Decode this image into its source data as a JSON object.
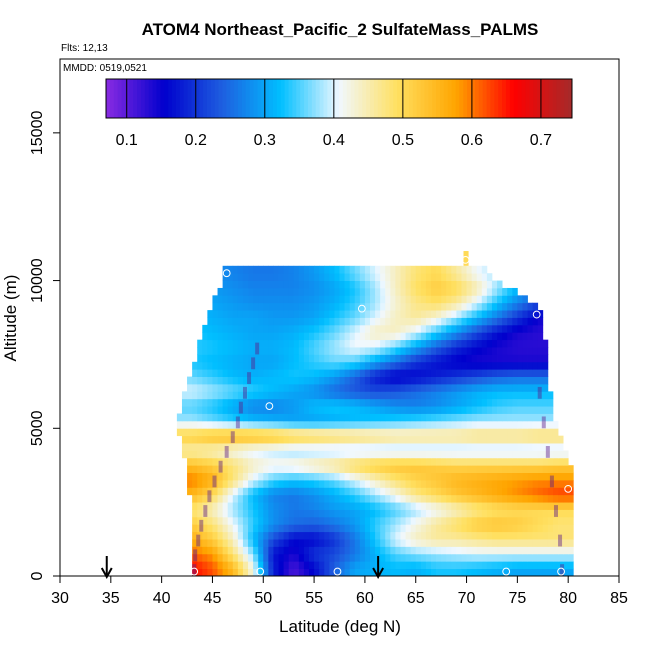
{
  "chart_data": {
    "type": "heatmap",
    "title": "ATOM4 Northeast_Pacific_2 SulfateMass_PALMS",
    "flights_label": "Flts: 12,13",
    "dates_label": "MMDD: 0519,0521",
    "xlabel": "Latitude (deg N)",
    "ylabel": "Altitude (m)",
    "xlim": [
      30,
      85
    ],
    "ylim": [
      0,
      17500
    ],
    "xticks": [
      "30",
      "35",
      "40",
      "45",
      "50",
      "55",
      "60",
      "65",
      "70",
      "75",
      "80",
      "85"
    ],
    "yticks": [
      "0",
      "5000",
      "10000",
      "15000"
    ],
    "colorbar": {
      "range": [
        0.07,
        0.745
      ],
      "ticks": [
        "0.1",
        "0.2",
        "0.3",
        "0.4",
        "0.5",
        "0.6",
        "0.7"
      ],
      "tick_values": [
        0.1,
        0.2,
        0.3,
        0.4,
        0.5,
        0.6,
        0.7
      ],
      "colors": [
        "#8a2be2",
        "#0000cd",
        "#1e5fe0",
        "#00bfff",
        "#f0f8ff",
        "#ffe060",
        "#ffa500",
        "#ff0000",
        "#a52a2a"
      ]
    },
    "latitude_bins": [
      43,
      45,
      47,
      49,
      51,
      53,
      55,
      57,
      59,
      61,
      63,
      65,
      67,
      69,
      71,
      73,
      75,
      77,
      79
    ],
    "altitude_bins": [
      250,
      750,
      1250,
      1750,
      2250,
      2750,
      3250,
      3750,
      4250,
      4750,
      5250,
      5750,
      6250,
      6750,
      7250,
      7750,
      8250,
      8750,
      9250,
      9750,
      10250
    ],
    "values": [
      [
        0.66,
        0.62,
        0.55,
        0.42,
        0.18,
        0.11,
        0.16,
        0.24,
        0.3,
        0.31,
        0.32,
        0.31,
        0.33,
        0.33,
        0.32,
        0.31,
        0.3,
        0.3,
        0.3
      ],
      [
        0.61,
        0.58,
        0.48,
        0.37,
        0.17,
        0.14,
        0.2,
        0.22,
        0.26,
        0.31,
        0.35,
        0.37,
        0.38,
        0.39,
        0.4,
        0.4,
        0.4,
        0.4,
        0.4
      ],
      [
        0.56,
        0.52,
        0.44,
        0.32,
        0.22,
        0.16,
        0.16,
        0.2,
        0.26,
        0.33,
        0.4,
        0.44,
        0.46,
        0.46,
        0.47,
        0.48,
        0.48,
        0.48,
        0.48
      ],
      [
        0.52,
        0.48,
        0.41,
        0.34,
        0.28,
        0.25,
        0.24,
        0.26,
        0.29,
        0.34,
        0.38,
        0.42,
        0.46,
        0.49,
        0.52,
        0.53,
        0.52,
        0.5,
        0.48
      ],
      [
        0.48,
        0.44,
        0.38,
        0.33,
        0.28,
        0.26,
        0.27,
        0.29,
        0.3,
        0.32,
        0.35,
        0.38,
        0.41,
        0.44,
        0.47,
        0.49,
        0.5,
        0.5,
        0.5
      ],
      [
        0.55,
        0.5,
        0.4,
        0.32,
        0.27,
        0.26,
        0.28,
        0.31,
        0.34,
        0.38,
        0.42,
        0.47,
        0.5,
        0.53,
        0.55,
        0.57,
        0.59,
        0.61,
        0.63
      ],
      [
        0.6,
        0.56,
        0.48,
        0.4,
        0.35,
        0.33,
        0.34,
        0.36,
        0.4,
        0.44,
        0.48,
        0.51,
        0.53,
        0.55,
        0.56,
        0.57,
        0.58,
        0.59,
        0.59
      ],
      [
        0.54,
        0.52,
        0.48,
        0.44,
        0.42,
        0.43,
        0.45,
        0.47,
        0.5,
        0.52,
        0.53,
        0.53,
        0.52,
        0.51,
        0.51,
        0.51,
        0.51,
        0.51,
        0.52
      ],
      [
        0.45,
        0.44,
        0.42,
        0.4,
        0.39,
        0.38,
        0.38,
        0.38,
        0.38,
        0.38,
        0.38,
        0.38,
        0.38,
        0.38,
        0.38,
        0.38,
        0.38,
        0.38,
        0.38
      ],
      [
        0.52,
        0.54,
        0.55,
        0.55,
        0.54,
        0.52,
        0.51,
        0.5,
        0.49,
        0.48,
        0.47,
        0.47,
        0.47,
        0.47,
        0.48,
        0.48,
        0.48,
        0.49,
        0.49
      ],
      [
        0.38,
        0.36,
        0.34,
        0.32,
        0.31,
        0.3,
        0.3,
        0.31,
        0.32,
        0.33,
        0.34,
        0.35,
        0.36,
        0.37,
        0.38,
        0.38,
        0.38,
        0.38,
        0.38
      ],
      [
        0.35,
        0.33,
        0.3,
        0.27,
        0.27,
        0.29,
        0.32,
        0.33,
        0.32,
        0.3,
        0.28,
        0.27,
        0.28,
        0.3,
        0.32,
        0.34,
        0.35,
        0.35,
        0.35
      ],
      [
        0.4,
        0.38,
        0.36,
        0.34,
        0.32,
        0.3,
        0.28,
        0.25,
        0.23,
        0.22,
        0.23,
        0.25,
        0.27,
        0.29,
        0.31,
        0.32,
        0.32,
        0.32,
        0.32
      ],
      [
        0.36,
        0.34,
        0.32,
        0.31,
        0.32,
        0.33,
        0.32,
        0.29,
        0.24,
        0.18,
        0.15,
        0.16,
        0.18,
        0.2,
        0.22,
        0.24,
        0.25,
        0.25,
        0.25
      ],
      [
        0.33,
        0.32,
        0.31,
        0.3,
        0.3,
        0.32,
        0.34,
        0.36,
        0.35,
        0.3,
        0.25,
        0.2,
        0.17,
        0.15,
        0.14,
        0.14,
        0.14,
        0.14,
        0.14
      ],
      [
        0.34,
        0.33,
        0.32,
        0.31,
        0.31,
        0.32,
        0.35,
        0.38,
        0.41,
        0.4,
        0.36,
        0.3,
        0.24,
        0.19,
        0.16,
        0.14,
        0.13,
        0.13,
        0.13
      ],
      [
        0.33,
        0.32,
        0.31,
        0.3,
        0.3,
        0.31,
        0.33,
        0.36,
        0.4,
        0.44,
        0.44,
        0.4,
        0.34,
        0.28,
        0.22,
        0.17,
        0.14,
        0.13,
        0.13
      ],
      [
        0.32,
        0.31,
        0.3,
        0.3,
        0.29,
        0.29,
        0.3,
        0.33,
        0.36,
        0.4,
        0.44,
        0.46,
        0.43,
        0.38,
        0.32,
        0.26,
        0.2,
        0.15,
        0.13
      ],
      [
        0.31,
        0.3,
        0.29,
        0.28,
        0.28,
        0.28,
        0.29,
        0.31,
        0.34,
        0.38,
        0.43,
        0.47,
        0.49,
        0.46,
        0.4,
        0.33,
        0.27,
        0.22,
        0.2
      ],
      [
        0.3,
        0.29,
        0.28,
        0.27,
        0.27,
        0.27,
        0.28,
        0.3,
        0.33,
        0.38,
        0.44,
        0.49,
        0.52,
        0.5,
        0.45,
        0.38,
        0.32,
        0.28,
        0.27
      ],
      [
        0.29,
        0.28,
        0.27,
        0.26,
        0.26,
        0.27,
        0.29,
        0.32,
        0.36,
        0.4,
        0.44,
        0.48,
        0.5,
        0.46,
        0.41,
        0.38,
        0.36,
        0.34,
        0.33
      ]
    ],
    "flight_tracks": [
      {
        "lat": [
          43.2,
          43.3,
          43.6,
          43.9,
          44.3,
          44.7,
          45.2,
          45.8,
          46.4,
          47.0,
          47.5,
          47.8,
          48.2,
          48.6,
          49.0,
          49.4
        ],
        "alt": [
          0,
          500,
          1000,
          1500,
          2000,
          2500,
          3000,
          3500,
          4000,
          4500,
          5000,
          5500,
          6000,
          6500,
          7000,
          7500
        ]
      },
      {
        "lat": [
          79.4,
          79.2,
          78.8,
          78.4,
          78.0,
          77.6,
          77.2
        ],
        "alt": [
          0,
          1000,
          2000,
          3000,
          4000,
          5000,
          6000
        ]
      }
    ],
    "circle_markers": [
      {
        "lat": 43.2,
        "alt": 150
      },
      {
        "lat": 49.7,
        "alt": 150
      },
      {
        "lat": 57.3,
        "alt": 150
      },
      {
        "lat": 73.9,
        "alt": 150
      },
      {
        "lat": 79.3,
        "alt": 150
      },
      {
        "lat": 80.0,
        "alt": 2950
      },
      {
        "lat": 50.6,
        "alt": 5750
      },
      {
        "lat": 59.7,
        "alt": 9050
      },
      {
        "lat": 76.9,
        "alt": 8850
      },
      {
        "lat": 46.4,
        "alt": 10250
      },
      {
        "lat": 69.9,
        "alt": 10700
      }
    ],
    "arrows": [
      {
        "lat": 34.6
      },
      {
        "lat": 61.3
      }
    ]
  }
}
